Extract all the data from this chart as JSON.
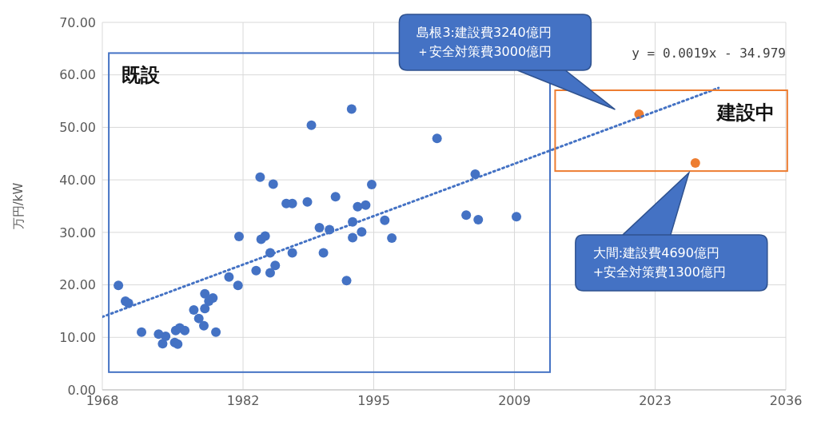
{
  "chart_data": {
    "type": "scatter",
    "ylabel": "万円/kW",
    "xlim": [
      1968,
      2036
    ],
    "xticks": [
      1968,
      1982,
      1995,
      2009,
      2023,
      2036
    ],
    "ylim": [
      0,
      70
    ],
    "yticks": [
      {
        "value": 0,
        "label": "0.00"
      },
      {
        "value": 10,
        "label": "10.00"
      },
      {
        "value": 20,
        "label": "20.00"
      },
      {
        "value": 30,
        "label": "30.00"
      },
      {
        "value": 40,
        "label": "40.00"
      },
      {
        "value": 50,
        "label": "50.00"
      },
      {
        "value": 60,
        "label": "60.00"
      },
      {
        "value": 70,
        "label": "70.00"
      }
    ],
    "grid": true,
    "marker": "circle",
    "series": [
      {
        "color": "#4472c4",
        "x": [
          1969.6,
          1970.3,
          1970.6,
          1971.9,
          1973.6,
          1974.0,
          1974.3,
          1975.2,
          1975.5,
          1975.3,
          1975.7,
          1976.2,
          1977.1,
          1977.6,
          1978.1,
          1978.2,
          1978.2,
          1978.6,
          1979.0,
          1979.3,
          1980.6,
          1981.5,
          1981.6,
          1983.3,
          1983.7,
          1983.8,
          1984.2,
          1984.7,
          1984.7,
          1985.0,
          1985.2,
          1986.3,
          1986.9,
          1986.9,
          1988.4,
          1988.8,
          1989.6,
          1990.0,
          1990.6,
          1991.2,
          1992.3,
          1992.8,
          1992.9,
          1992.9,
          1993.4,
          1993.8,
          1994.2,
          1994.8,
          1996.1,
          1996.8,
          2001.3,
          2004.2,
          2005.1,
          2005.4,
          2009.2
        ],
        "values": [
          19.9,
          16.9,
          16.5,
          11.0,
          10.6,
          8.8,
          10.2,
          9.0,
          8.7,
          11.3,
          11.8,
          11.3,
          15.2,
          13.6,
          12.2,
          18.3,
          15.5,
          16.9,
          17.5,
          11.0,
          21.5,
          19.9,
          29.2,
          22.7,
          40.5,
          28.7,
          29.3,
          26.1,
          22.3,
          39.2,
          23.7,
          35.5,
          35.5,
          26.1,
          35.8,
          50.4,
          30.9,
          26.1,
          30.5,
          36.8,
          20.8,
          53.5,
          32.0,
          29.0,
          34.9,
          30.1,
          35.2,
          39.1,
          32.3,
          28.9,
          47.9,
          33.3,
          41.1,
          32.4,
          33.0
        ]
      },
      {
        "color": "#ed7d31",
        "x": [
          2021.4,
          2027.0
        ],
        "values": [
          52.5,
          43.2
        ]
      },
      {
        "name": "y = 0.0019x - 34.979",
        "type": "line",
        "color": "#4472c4",
        "line_style": "dotted",
        "marker": "none",
        "x": [
          1968,
          2029.3
        ],
        "values": [
          13.9,
          57.5
        ]
      }
    ],
    "annotations": [
      "既設",
      "建設中",
      "島根3:建設費3240億円＋安全対策費3000億円",
      "大間:建設費4690億円+安全対策費1300億円"
    ]
  }
}
